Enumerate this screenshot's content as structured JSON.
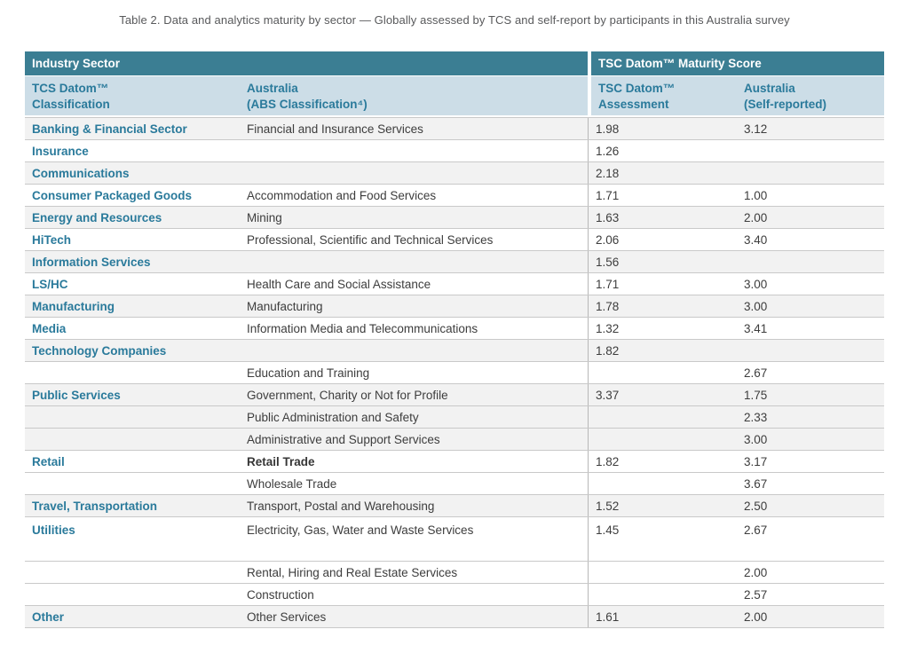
{
  "caption": "Table 2. Data and analytics maturity by sector — Globally assessed by TCS and self-report by participants in this Australia survey",
  "colors": {
    "header_dark": "#3b7e93",
    "header_light": "#ccdde7",
    "teal_text": "#2a7a9b",
    "row_stripe": "#f2f2f2",
    "border": "#c9c9c9"
  },
  "table": {
    "group_headers": {
      "left": "Industry Sector",
      "right": "TSC Datom™ Maturity Score"
    },
    "columns": [
      {
        "line1": "TCS Datom™",
        "line2": "Classification"
      },
      {
        "line1": "Australia",
        "line2": "(ABS Classification⁴)"
      },
      {
        "line1": "TSC Datom™",
        "line2": "Assessment"
      },
      {
        "line1": "Australia",
        "line2": "(Self-reported)"
      }
    ],
    "rows": [
      {
        "sector": "Banking & Financial Sector",
        "abs": "Financial and Insurance Services",
        "tsc": "1.98",
        "self": "3.12",
        "shaded": true
      },
      {
        "sector": "Insurance",
        "abs": "",
        "tsc": "1.26",
        "self": "",
        "shaded": false
      },
      {
        "sector": "Communications",
        "abs": "",
        "tsc": "2.18",
        "self": "",
        "shaded": true
      },
      {
        "sector": "Consumer Packaged Goods",
        "abs": "Accommodation and Food Services",
        "tsc": "1.71",
        "self": "1.00",
        "shaded": false
      },
      {
        "sector": "Energy and Resources",
        "abs": "Mining",
        "tsc": "1.63",
        "self": "2.00",
        "shaded": true
      },
      {
        "sector": "HiTech",
        "abs": "Professional, Scientific and Technical Services",
        "tsc": "2.06",
        "self": "3.40",
        "shaded": false
      },
      {
        "sector": "Information Services",
        "abs": "",
        "tsc": "1.56",
        "self": "",
        "shaded": true
      },
      {
        "sector": "LS/HC",
        "abs": "Health Care and Social Assistance",
        "tsc": "1.71",
        "self": "3.00",
        "shaded": false
      },
      {
        "sector": "Manufacturing",
        "abs": "Manufacturing",
        "tsc": "1.78",
        "self": "3.00",
        "shaded": true
      },
      {
        "sector": "Media",
        "abs": "Information Media and Telecommunications",
        "tsc": "1.32",
        "self": "3.41",
        "shaded": false
      },
      {
        "sector": "Technology Companies",
        "abs": "",
        "tsc": "1.82",
        "self": "",
        "shaded": true
      },
      {
        "sector": "",
        "abs": "Education and Training",
        "tsc": "",
        "self": "2.67",
        "shaded": false
      },
      {
        "sector": "Public Services",
        "abs": "Government, Charity or Not for Profile",
        "tsc": "3.37",
        "self": "1.75",
        "shaded": true
      },
      {
        "sector": "",
        "abs": "Public Administration and Safety",
        "tsc": "",
        "self": "2.33",
        "shaded": true
      },
      {
        "sector": "",
        "abs": "Administrative and Support Services",
        "tsc": "",
        "self": "3.00",
        "shaded": true
      },
      {
        "sector": "Retail",
        "abs": "Retail Trade",
        "abs_bold": true,
        "tsc": "1.82",
        "self": "3.17",
        "shaded": false
      },
      {
        "sector": "",
        "abs": "Wholesale Trade",
        "tsc": "",
        "self": "3.67",
        "shaded": false
      },
      {
        "sector": "Travel, Transportation",
        "abs": "Transport, Postal and Warehousing",
        "tsc": "1.52",
        "self": "2.50",
        "shaded": true
      },
      {
        "sector": "Utilities",
        "abs": "Electricity, Gas, Water and Waste Services",
        "tsc": "1.45",
        "self": "2.67",
        "shaded": false,
        "tall": true
      },
      {
        "sector": "",
        "abs": "Rental, Hiring and Real Estate Services",
        "tsc": "",
        "self": "2.00",
        "shaded": false
      },
      {
        "sector": "",
        "abs": "Construction",
        "tsc": "",
        "self": "2.57",
        "shaded": false
      },
      {
        "sector": "Other",
        "abs": "Other Services",
        "tsc": "1.61",
        "self": "2.00",
        "shaded": true
      }
    ]
  }
}
